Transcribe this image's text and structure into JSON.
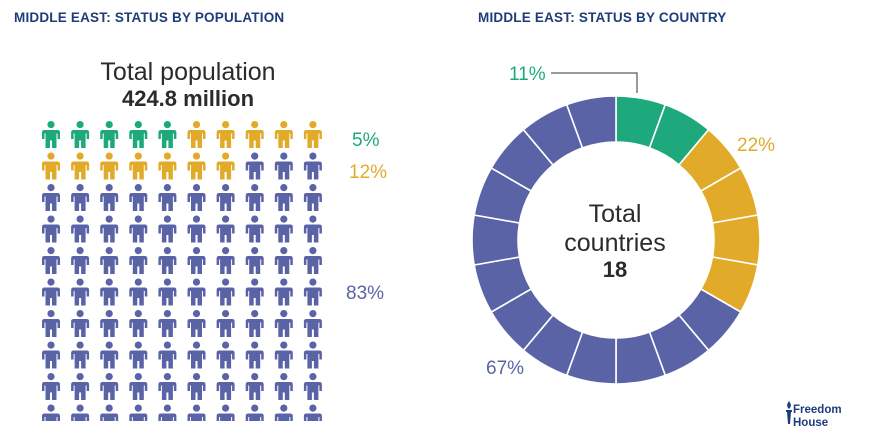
{
  "colors": {
    "free": "#1ea97c",
    "partly_free": "#e2aa29",
    "not_free": "#5b63a7",
    "title": "#1f3c7a",
    "text": "#2b2b2b"
  },
  "population_panel": {
    "title": "MIDDLE EAST: STATUS BY POPULATION",
    "total_label": "Total population",
    "total_value": "424.8 million"
  },
  "country_panel": {
    "title": "MIDDLE EAST: STATUS BY COUNTRY",
    "total_label_line1": "Total",
    "total_label_line2": "countries",
    "total_value": "18"
  },
  "chart_data": [
    {
      "type": "pictogram",
      "title": "MIDDLE EAST: STATUS BY POPULATION",
      "total_label": "Total population",
      "total_value": "424.8 million",
      "grid": {
        "rows": 10,
        "cols": 10
      },
      "series": [
        {
          "status": "free",
          "icons": 5,
          "label": "5%",
          "value": 5
        },
        {
          "status": "partly_free",
          "icons": 12,
          "label": "12%",
          "value": 12
        },
        {
          "status": "not_free",
          "icons": 83,
          "label": "83%",
          "value": 83
        }
      ]
    },
    {
      "type": "pie",
      "title": "MIDDLE EAST: STATUS BY COUNTRY",
      "total_label": "Total countries",
      "total_value": "18",
      "segments_total": 18,
      "slices": [
        {
          "status": "free",
          "count": 2,
          "label": "11%",
          "value": 11
        },
        {
          "status": "partly_free",
          "count": 4,
          "label": "22%",
          "value": 22
        },
        {
          "status": "not_free",
          "count": 12,
          "label": "67%",
          "value": 67
        }
      ]
    }
  ],
  "logo": {
    "line1": "Freedom",
    "line2": "House"
  }
}
